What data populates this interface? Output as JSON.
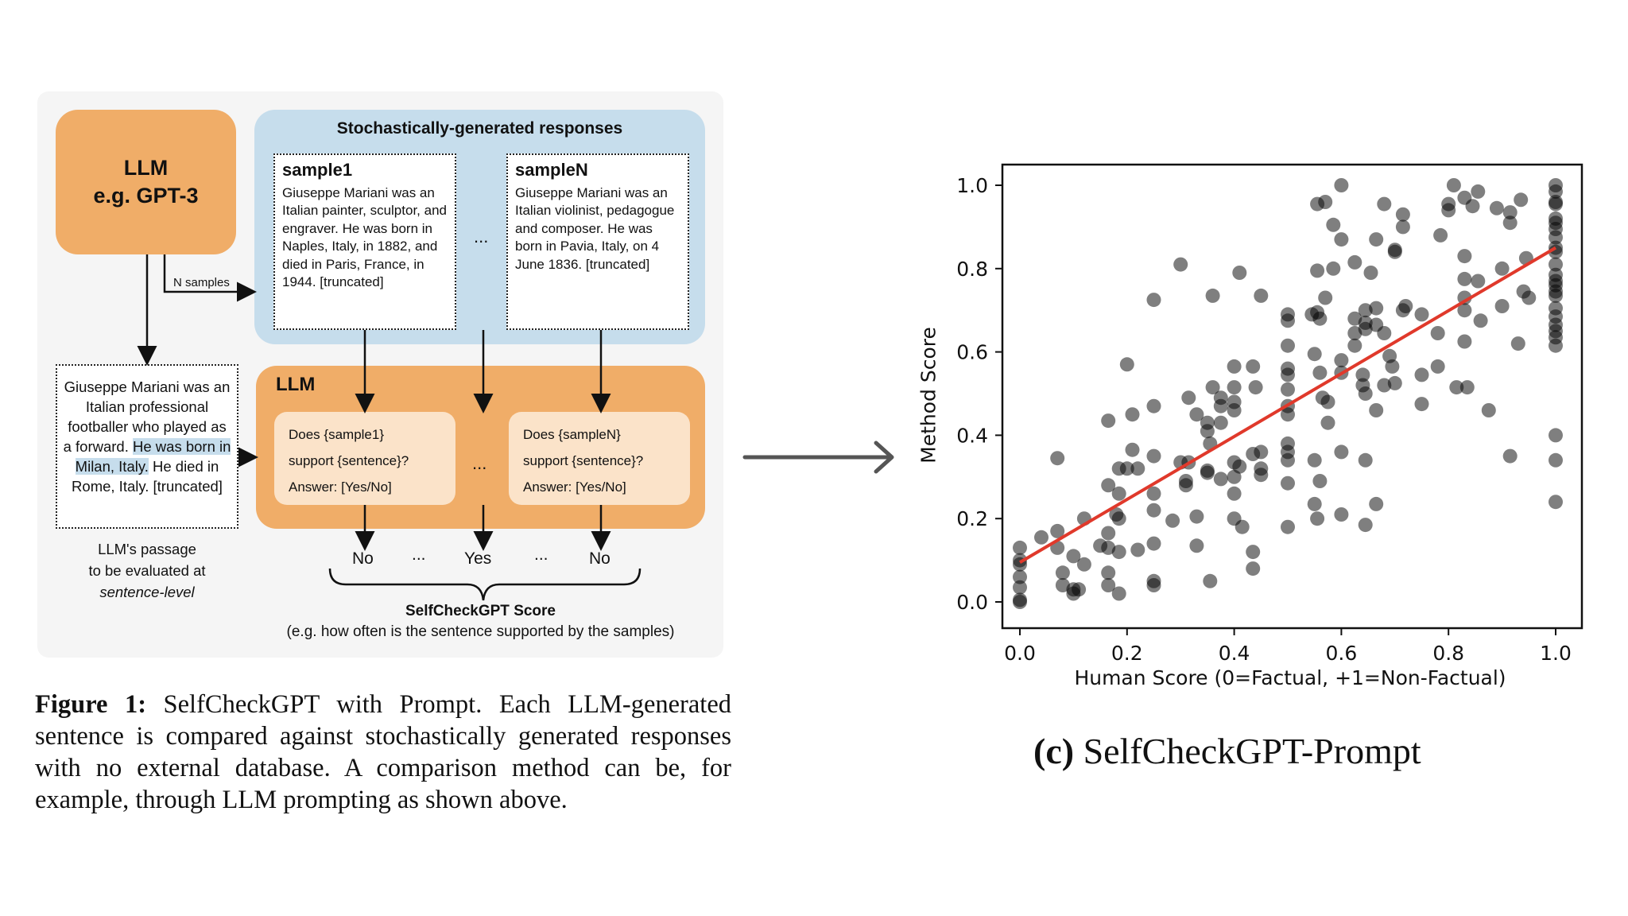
{
  "diagram": {
    "llm_top": {
      "line1": "LLM",
      "line2": "e.g. GPT-3"
    },
    "n_samples_label": "N samples",
    "stochastic_title": "Stochastically-generated responses",
    "samples": [
      {
        "title": "sample1",
        "text": "Giuseppe Mariani was an Italian painter, sculptor, and engraver. He was born in Naples, Italy, in 1882, and died in Paris, France, in 1944. [truncated]"
      },
      {
        "title": "sampleN",
        "text": "Giuseppe Mariani was an Italian violinist, pedagogue and composer. He was born in Pavia, Italy, on 4 June 1836. [truncated]"
      }
    ],
    "ellipsis": "...",
    "passage": {
      "pre": "Giuseppe Mariani was an Italian professional footballer who played as a forward. ",
      "highlight": "He was born in Milan, Italy.",
      "post": " He died in Rome, Italy. [truncated]"
    },
    "passage_caption": {
      "line1": "LLM's passage",
      "line2": "to be evaluated at",
      "line3": "sentence-level"
    },
    "llm_bottom_label": "LLM",
    "prompts": [
      {
        "line1": "Does {sample1}",
        "line2": "support {sentence}?",
        "line3": "Answer: [Yes/No]"
      },
      {
        "line1": "Does {sampleN}",
        "line2": "support {sentence}?",
        "line3": "Answer: [Yes/No]"
      }
    ],
    "answers": [
      "No",
      "...",
      "Yes",
      "...",
      "No"
    ],
    "score_title": "SelfCheckGPT Score",
    "score_subtitle": "(e.g. how often is the sentence supported by the samples)",
    "colors": {
      "orange": "#f0ad68",
      "blue": "#c6ddec",
      "prompt_bg": "#fbe3c9",
      "panel": "#f5f5f5"
    }
  },
  "caption": {
    "label": "Figure 1:",
    "text": " SelfCheckGPT with Prompt. Each LLM-generated sentence is compared against stochastically generated responses with no external database.  A comparison method can be, for example, through LLM prompting as shown above."
  },
  "subcaption": {
    "label": "(c)",
    "text": " SelfCheckGPT-Prompt"
  },
  "chart_data": {
    "type": "scatter",
    "title": "",
    "xlabel": "Human Score (0=Factual, +1=Non-Factual)",
    "ylabel": "Method Score",
    "xlim": [
      -0.05,
      1.05
    ],
    "ylim": [
      -0.05,
      1.05
    ],
    "xticks": [
      "0.0",
      "0.2",
      "0.4",
      "0.6",
      "0.8",
      "1.0"
    ],
    "yticks": [
      "0.0",
      "0.2",
      "0.4",
      "0.6",
      "0.8",
      "1.0"
    ],
    "grid": false,
    "marker_color": "#000000",
    "marker_alpha": 0.5,
    "regression_line": {
      "color": "#e0392b",
      "x": [
        0.0,
        1.0
      ],
      "y": [
        0.095,
        0.85
      ]
    },
    "points": [
      [
        0.0,
        0.0
      ],
      [
        0.0,
        0.005
      ],
      [
        0.0,
        0.035
      ],
      [
        0.0,
        0.06
      ],
      [
        0.0,
        0.09
      ],
      [
        0.0,
        0.1
      ],
      [
        0.0,
        0.13
      ],
      [
        0.04,
        0.155
      ],
      [
        0.07,
        0.17
      ],
      [
        0.07,
        0.345
      ],
      [
        0.07,
        0.13
      ],
      [
        0.08,
        0.07
      ],
      [
        0.08,
        0.04
      ],
      [
        0.1,
        0.11
      ],
      [
        0.1,
        0.03
      ],
      [
        0.1,
        0.02
      ],
      [
        0.11,
        0.03
      ],
      [
        0.12,
        0.09
      ],
      [
        0.12,
        0.2
      ],
      [
        0.15,
        0.135
      ],
      [
        0.165,
        0.165
      ],
      [
        0.165,
        0.13
      ],
      [
        0.165,
        0.07
      ],
      [
        0.165,
        0.04
      ],
      [
        0.165,
        0.435
      ],
      [
        0.165,
        0.28
      ],
      [
        0.18,
        0.21
      ],
      [
        0.185,
        0.2
      ],
      [
        0.185,
        0.12
      ],
      [
        0.185,
        0.26
      ],
      [
        0.185,
        0.02
      ],
      [
        0.185,
        0.32
      ],
      [
        0.2,
        0.57
      ],
      [
        0.2,
        0.32
      ],
      [
        0.21,
        0.365
      ],
      [
        0.21,
        0.45
      ],
      [
        0.22,
        0.32
      ],
      [
        0.22,
        0.125
      ],
      [
        0.25,
        0.725
      ],
      [
        0.25,
        0.47
      ],
      [
        0.25,
        0.35
      ],
      [
        0.25,
        0.26
      ],
      [
        0.25,
        0.22
      ],
      [
        0.25,
        0.14
      ],
      [
        0.25,
        0.05
      ],
      [
        0.25,
        0.04
      ],
      [
        0.285,
        0.195
      ],
      [
        0.3,
        0.81
      ],
      [
        0.3,
        0.335
      ],
      [
        0.31,
        0.28
      ],
      [
        0.31,
        0.29
      ],
      [
        0.315,
        0.335
      ],
      [
        0.315,
        0.49
      ],
      [
        0.33,
        0.45
      ],
      [
        0.33,
        0.205
      ],
      [
        0.33,
        0.135
      ],
      [
        0.35,
        0.43
      ],
      [
        0.35,
        0.41
      ],
      [
        0.35,
        0.315
      ],
      [
        0.35,
        0.31
      ],
      [
        0.355,
        0.05
      ],
      [
        0.355,
        0.38
      ],
      [
        0.36,
        0.735
      ],
      [
        0.36,
        0.515
      ],
      [
        0.375,
        0.49
      ],
      [
        0.375,
        0.47
      ],
      [
        0.375,
        0.43
      ],
      [
        0.375,
        0.295
      ],
      [
        0.4,
        0.565
      ],
      [
        0.4,
        0.515
      ],
      [
        0.4,
        0.48
      ],
      [
        0.4,
        0.46
      ],
      [
        0.4,
        0.335
      ],
      [
        0.4,
        0.3
      ],
      [
        0.4,
        0.26
      ],
      [
        0.4,
        0.2
      ],
      [
        0.41,
        0.79
      ],
      [
        0.41,
        0.325
      ],
      [
        0.415,
        0.18
      ],
      [
        0.435,
        0.565
      ],
      [
        0.435,
        0.355
      ],
      [
        0.435,
        0.12
      ],
      [
        0.435,
        0.08
      ],
      [
        0.44,
        0.515
      ],
      [
        0.45,
        0.735
      ],
      [
        0.45,
        0.36
      ],
      [
        0.45,
        0.305
      ],
      [
        0.45,
        0.32
      ],
      [
        0.5,
        0.69
      ],
      [
        0.5,
        0.675
      ],
      [
        0.5,
        0.615
      ],
      [
        0.5,
        0.56
      ],
      [
        0.5,
        0.545
      ],
      [
        0.5,
        0.51
      ],
      [
        0.5,
        0.47
      ],
      [
        0.5,
        0.45
      ],
      [
        0.5,
        0.38
      ],
      [
        0.5,
        0.36
      ],
      [
        0.5,
        0.34
      ],
      [
        0.5,
        0.285
      ],
      [
        0.5,
        0.18
      ],
      [
        0.545,
        0.69
      ],
      [
        0.55,
        0.595
      ],
      [
        0.55,
        0.34
      ],
      [
        0.55,
        0.235
      ],
      [
        0.555,
        0.955
      ],
      [
        0.555,
        0.795
      ],
      [
        0.555,
        0.695
      ],
      [
        0.555,
        0.2
      ],
      [
        0.56,
        0.68
      ],
      [
        0.56,
        0.55
      ],
      [
        0.56,
        0.29
      ],
      [
        0.565,
        0.49
      ],
      [
        0.57,
        0.96
      ],
      [
        0.57,
        0.73
      ],
      [
        0.575,
        0.48
      ],
      [
        0.575,
        0.43
      ],
      [
        0.585,
        0.8
      ],
      [
        0.585,
        0.905
      ],
      [
        0.6,
        1.0
      ],
      [
        0.6,
        0.87
      ],
      [
        0.6,
        0.58
      ],
      [
        0.6,
        0.55
      ],
      [
        0.6,
        0.36
      ],
      [
        0.6,
        0.21
      ],
      [
        0.625,
        0.815
      ],
      [
        0.625,
        0.68
      ],
      [
        0.625,
        0.645
      ],
      [
        0.625,
        0.615
      ],
      [
        0.64,
        0.545
      ],
      [
        0.64,
        0.52
      ],
      [
        0.645,
        0.7
      ],
      [
        0.645,
        0.67
      ],
      [
        0.645,
        0.655
      ],
      [
        0.645,
        0.5
      ],
      [
        0.645,
        0.34
      ],
      [
        0.645,
        0.185
      ],
      [
        0.655,
        0.79
      ],
      [
        0.665,
        0.87
      ],
      [
        0.665,
        0.705
      ],
      [
        0.665,
        0.665
      ],
      [
        0.665,
        0.46
      ],
      [
        0.665,
        0.235
      ],
      [
        0.68,
        0.955
      ],
      [
        0.68,
        0.645
      ],
      [
        0.68,
        0.52
      ],
      [
        0.69,
        0.59
      ],
      [
        0.695,
        0.565
      ],
      [
        0.7,
        0.845
      ],
      [
        0.7,
        0.84
      ],
      [
        0.7,
        0.525
      ],
      [
        0.715,
        0.93
      ],
      [
        0.715,
        0.9
      ],
      [
        0.715,
        0.7
      ],
      [
        0.72,
        0.71
      ],
      [
        0.75,
        0.69
      ],
      [
        0.75,
        0.545
      ],
      [
        0.75,
        0.475
      ],
      [
        0.78,
        0.645
      ],
      [
        0.78,
        0.565
      ],
      [
        0.785,
        0.88
      ],
      [
        0.8,
        0.955
      ],
      [
        0.8,
        0.94
      ],
      [
        0.81,
        1.0
      ],
      [
        0.815,
        0.515
      ],
      [
        0.83,
        0.97
      ],
      [
        0.83,
        0.83
      ],
      [
        0.83,
        0.775
      ],
      [
        0.83,
        0.73
      ],
      [
        0.83,
        0.7
      ],
      [
        0.83,
        0.625
      ],
      [
        0.835,
        0.515
      ],
      [
        0.845,
        0.95
      ],
      [
        0.855,
        0.985
      ],
      [
        0.855,
        0.77
      ],
      [
        0.86,
        0.675
      ],
      [
        0.875,
        0.46
      ],
      [
        0.89,
        0.945
      ],
      [
        0.9,
        0.8
      ],
      [
        0.9,
        0.71
      ],
      [
        0.915,
        0.935
      ],
      [
        0.915,
        0.91
      ],
      [
        0.915,
        0.35
      ],
      [
        0.93,
        0.62
      ],
      [
        0.935,
        0.965
      ],
      [
        0.94,
        0.745
      ],
      [
        0.945,
        0.825
      ],
      [
        0.95,
        0.73
      ],
      [
        1.0,
        1.0
      ],
      [
        1.0,
        0.985
      ],
      [
        1.0,
        0.96
      ],
      [
        1.0,
        0.955
      ],
      [
        1.0,
        0.92
      ],
      [
        1.0,
        0.91
      ],
      [
        1.0,
        0.895
      ],
      [
        1.0,
        0.875
      ],
      [
        1.0,
        0.85
      ],
      [
        1.0,
        0.84
      ],
      [
        1.0,
        0.81
      ],
      [
        1.0,
        0.785
      ],
      [
        1.0,
        0.77
      ],
      [
        1.0,
        0.76
      ],
      [
        1.0,
        0.745
      ],
      [
        1.0,
        0.735
      ],
      [
        1.0,
        0.705
      ],
      [
        1.0,
        0.685
      ],
      [
        1.0,
        0.665
      ],
      [
        1.0,
        0.65
      ],
      [
        1.0,
        0.635
      ],
      [
        1.0,
        0.615
      ],
      [
        1.0,
        0.4
      ],
      [
        1.0,
        0.34
      ],
      [
        1.0,
        0.24
      ]
    ]
  }
}
